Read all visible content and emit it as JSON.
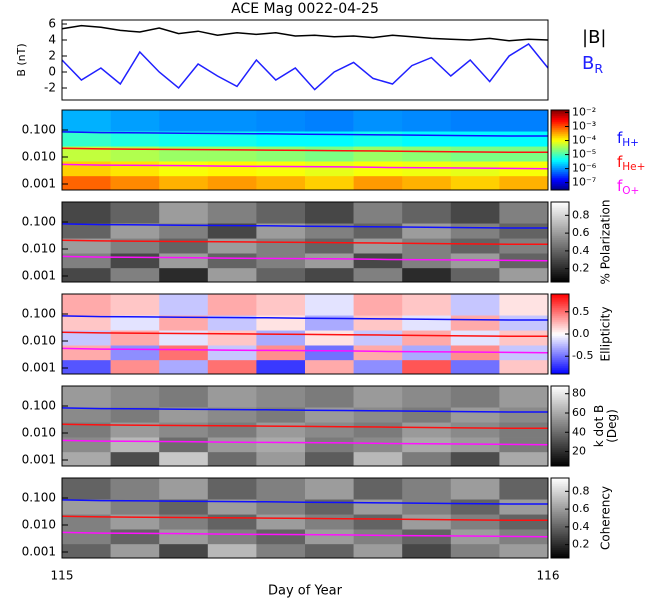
{
  "chart_data": [
    {
      "type": "line",
      "title": "ACE Mag 0022-04-25",
      "ylabel": "B (nT)",
      "x": [
        115,
        115.04,
        115.08,
        115.12,
        115.16,
        115.2,
        115.24,
        115.28,
        115.32,
        115.36,
        115.4,
        115.44,
        115.48,
        115.52,
        115.56,
        115.6,
        115.64,
        115.68,
        115.72,
        115.76,
        115.8,
        115.84,
        115.88,
        115.92,
        115.96,
        116
      ],
      "xlim": [
        115,
        116
      ],
      "ylim": [
        -3.5,
        6.5
      ],
      "yticks": [
        -2,
        0,
        2,
        4,
        6
      ],
      "series": [
        {
          "name": "|B|",
          "color": "#000000",
          "values": [
            5.4,
            5.8,
            5.6,
            5.2,
            5.0,
            5.5,
            4.8,
            5.1,
            4.6,
            4.9,
            4.7,
            4.9,
            4.5,
            4.6,
            4.4,
            4.5,
            4.3,
            4.6,
            4.4,
            4.2,
            4.1,
            4.0,
            4.2,
            3.9,
            4.1,
            4.0
          ]
        },
        {
          "name": "B",
          "subscript": "R",
          "color": "#2020ff",
          "values": [
            1.5,
            -1.0,
            0.5,
            -1.5,
            2.5,
            0.0,
            -2.0,
            1.0,
            -0.5,
            -1.8,
            1.5,
            -1.0,
            0.5,
            -2.2,
            0.0,
            1.2,
            -0.8,
            -1.5,
            0.8,
            1.8,
            -0.5,
            1.5,
            -1.2,
            2.0,
            3.5,
            0.5
          ]
        }
      ]
    },
    {
      "type": "spectrogram",
      "colormap": "jet",
      "clog": true,
      "xlim": [
        115,
        116
      ],
      "ylim": [
        0.0006,
        0.55
      ],
      "log_y": true,
      "yticks": [
        0.001,
        {
          "value": 0.01,
          "label": "0.010"
        },
        {
          "value": 0.1,
          "label": "0.100"
        }
      ],
      "time_bins": [
        115,
        115.1,
        115.2,
        115.3,
        115.4,
        115.5,
        115.6,
        115.7,
        115.8,
        115.9,
        116
      ],
      "freq_bins": [
        0.0006,
        0.002,
        0.007,
        0.025,
        0.09,
        0.55
      ],
      "clim": [
        3e-08,
        0.015
      ],
      "cticks": [
        {
          "value": 0.01,
          "label": "10⁻²"
        },
        {
          "value": 0.001,
          "label": "10⁻³"
        },
        {
          "value": 0.0001,
          "label": "10⁻⁴"
        },
        {
          "value": 1e-05,
          "label": "10⁻⁵"
        },
        {
          "value": 1e-06,
          "label": "10⁻⁶"
        },
        {
          "value": 1e-07,
          "label": "10⁻⁷"
        }
      ],
      "z": [
        [
          0.0008,
          0.0005,
          0.0003,
          0.0004,
          0.0003,
          0.0002,
          0.0004,
          0.0003,
          0.0002,
          0.0003
        ],
        [
          0.0002,
          0.00015,
          0.0001,
          0.00012,
          0.0001,
          8e-05,
          0.0001,
          9e-05,
          8e-05,
          0.0001
        ],
        [
          5e-05,
          4e-05,
          3e-05,
          3e-05,
          2.5e-05,
          2e-05,
          3e-05,
          2.5e-05,
          2e-05,
          2e-05
        ],
        [
          8e-06,
          6e-06,
          5e-06,
          5e-06,
          4e-06,
          4e-06,
          5e-06,
          4e-06,
          4e-06,
          4e-06
        ],
        [
          1.5e-06,
          1.2e-06,
          1e-06,
          1e-06,
          9e-07,
          8e-07,
          1e-06,
          9e-07,
          8e-07,
          8e-07
        ]
      ],
      "x": [
        115,
        115.08,
        115.17,
        115.25,
        115.33,
        115.42,
        115.5,
        115.58,
        115.67,
        115.75,
        115.83,
        115.92,
        116
      ],
      "series": [
        {
          "name": "f",
          "subscript": "H+",
          "color": "#1010ff",
          "values": [
            0.085,
            0.08,
            0.078,
            0.076,
            0.074,
            0.072,
            0.07,
            0.068,
            0.066,
            0.064,
            0.062,
            0.06,
            0.06
          ]
        },
        {
          "name": "f",
          "subscript": "He+",
          "color": "#ff1010",
          "values": [
            0.021,
            0.02,
            0.0195,
            0.019,
            0.0185,
            0.018,
            0.0175,
            0.017,
            0.0165,
            0.016,
            0.0155,
            0.015,
            0.015
          ]
        },
        {
          "name": "f",
          "subscript": "O+",
          "color": "#ff10ff",
          "values": [
            0.0053,
            0.005,
            0.0049,
            0.0048,
            0.0046,
            0.0045,
            0.0044,
            0.0043,
            0.0041,
            0.004,
            0.0039,
            0.0038,
            0.0037
          ]
        }
      ]
    },
    {
      "type": "spectrogram",
      "colormap": "gray",
      "clabel": [
        "% Polarization"
      ],
      "clim": [
        0.05,
        0.95
      ],
      "cticks": [
        0.2,
        0.4,
        0.6,
        0.8
      ],
      "z": [
        [
          0.3,
          0.5,
          0.2,
          0.6,
          0.4,
          0.3,
          0.5,
          0.2,
          0.4,
          0.6
        ],
        [
          0.5,
          0.3,
          0.6,
          0.4,
          0.5,
          0.6,
          0.3,
          0.5,
          0.6,
          0.4
        ],
        [
          0.6,
          0.5,
          0.4,
          0.6,
          0.5,
          0.4,
          0.6,
          0.5,
          0.4,
          0.5
        ],
        [
          0.4,
          0.6,
          0.5,
          0.3,
          0.6,
          0.5,
          0.4,
          0.6,
          0.5,
          0.4
        ],
        [
          0.3,
          0.4,
          0.6,
          0.5,
          0.4,
          0.3,
          0.5,
          0.4,
          0.3,
          0.5
        ]
      ]
    },
    {
      "type": "spectrogram",
      "colormap": "bwr",
      "clabel": [
        "Ellipticity"
      ],
      "clim": [
        -0.9,
        0.9
      ],
      "cticks": [
        -0.5,
        {
          "value": 0,
          "label": "0.0"
        },
        0.5
      ],
      "z": [
        [
          -0.6,
          0.4,
          -0.3,
          0.5,
          -0.7,
          0.3,
          -0.4,
          0.6,
          -0.5,
          0.2
        ],
        [
          0.3,
          -0.4,
          0.5,
          -0.2,
          0.4,
          -0.5,
          0.3,
          -0.3,
          0.4,
          -0.2
        ],
        [
          -0.2,
          0.3,
          -0.1,
          0.2,
          -0.3,
          0.1,
          -0.2,
          0.3,
          -0.1,
          0.2
        ],
        [
          0.2,
          -0.1,
          0.3,
          -0.2,
          0.1,
          -0.3,
          0.2,
          -0.1,
          0.3,
          -0.2
        ],
        [
          0.3,
          0.2,
          -0.2,
          0.3,
          0.2,
          -0.1,
          0.3,
          0.2,
          -0.2,
          0.1
        ]
      ]
    },
    {
      "type": "spectrogram",
      "colormap": "gray",
      "clabel": [
        "k dot B",
        "(Deg)"
      ],
      "clim": [
        5,
        88
      ],
      "cticks": [
        20,
        40,
        60,
        80
      ],
      "z": [
        [
          60,
          30,
          70,
          40,
          55,
          35,
          65,
          45,
          30,
          60
        ],
        [
          50,
          65,
          40,
          55,
          60,
          45,
          50,
          60,
          55,
          45
        ],
        [
          45,
          55,
          50,
          45,
          55,
          50,
          45,
          55,
          50,
          45
        ],
        [
          50,
          45,
          55,
          50,
          45,
          55,
          50,
          45,
          55,
          50
        ],
        [
          55,
          50,
          45,
          55,
          50,
          45,
          55,
          50,
          45,
          55
        ]
      ]
    },
    {
      "type": "spectrogram",
      "colormap": "gray",
      "clabel": [
        "Coherency"
      ],
      "clim": [
        0.05,
        0.95
      ],
      "cticks": [
        0.2,
        0.4,
        0.6,
        0.8
      ],
      "xlabel": "Day of Year",
      "xticks": [
        115,
        116
      ],
      "z": [
        [
          0.4,
          0.6,
          0.3,
          0.7,
          0.5,
          0.4,
          0.6,
          0.3,
          0.5,
          0.6
        ],
        [
          0.5,
          0.4,
          0.6,
          0.5,
          0.4,
          0.6,
          0.5,
          0.4,
          0.6,
          0.5
        ],
        [
          0.5,
          0.6,
          0.5,
          0.4,
          0.6,
          0.5,
          0.4,
          0.6,
          0.5,
          0.4
        ],
        [
          0.6,
          0.5,
          0.4,
          0.6,
          0.5,
          0.4,
          0.6,
          0.5,
          0.4,
          0.6
        ],
        [
          0.4,
          0.5,
          0.6,
          0.4,
          0.5,
          0.6,
          0.4,
          0.5,
          0.6,
          0.4
        ]
      ]
    }
  ]
}
